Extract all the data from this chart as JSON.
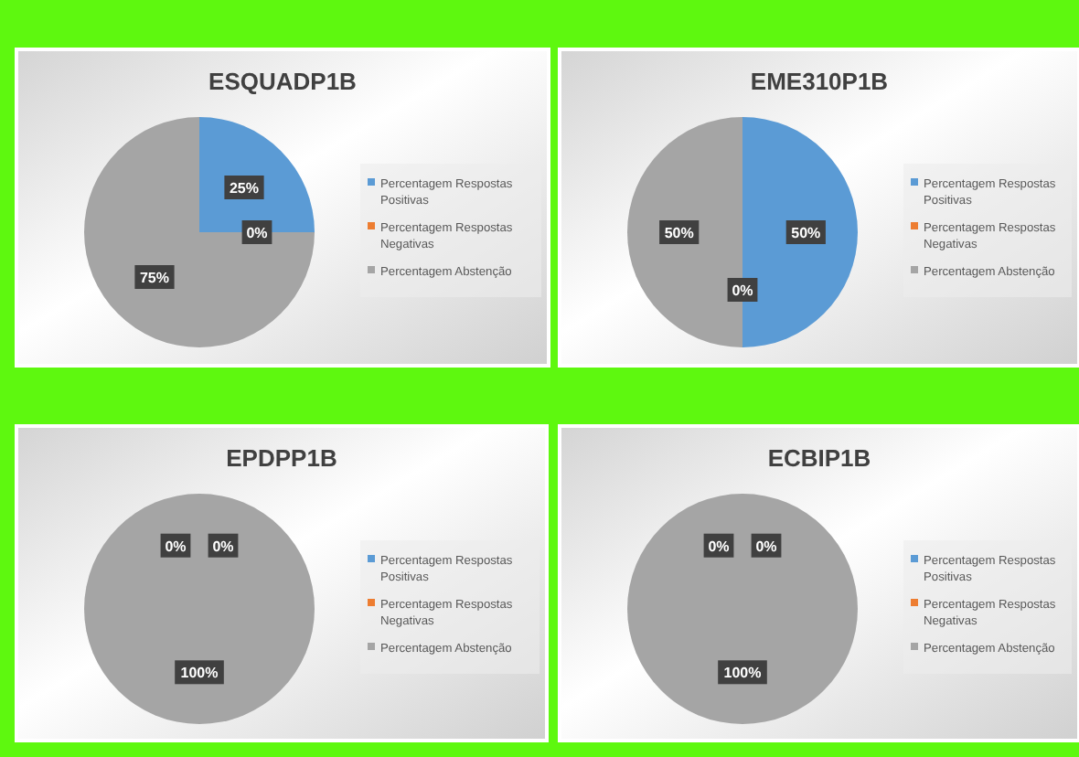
{
  "chart_data": [
    {
      "type": "pie",
      "title": "ESQUADP1B",
      "categories": [
        "Percentagem Respostas Positivas",
        "Percentagem Respostas Negativas",
        "Percentagem Abstenção"
      ],
      "values": [
        25,
        0,
        75
      ],
      "colors": [
        "#5b9bd5",
        "#ed7d31",
        "#a5a5a5"
      ],
      "value_labels": [
        "25%",
        "0%",
        "75%"
      ],
      "legend": "right"
    },
    {
      "type": "pie",
      "title": "EME310P1B",
      "categories": [
        "Percentagem Respostas Positivas",
        "Percentagem Respostas Negativas",
        "Percentagem Abstenção"
      ],
      "values": [
        50,
        0,
        50
      ],
      "colors": [
        "#5b9bd5",
        "#ed7d31",
        "#a5a5a5"
      ],
      "value_labels": [
        "50%",
        "0%",
        "50%"
      ],
      "legend": "right"
    },
    {
      "type": "pie",
      "title": "EPDPP1B",
      "categories": [
        "Percentagem Respostas Positivas",
        "Percentagem Respostas Negativas",
        "Percentagem Abstenção"
      ],
      "values": [
        0,
        0,
        100
      ],
      "colors": [
        "#5b9bd5",
        "#ed7d31",
        "#a5a5a5"
      ],
      "value_labels": [
        "0%",
        "0%",
        "100%"
      ],
      "legend": "right"
    },
    {
      "type": "pie",
      "title": "ECBIP1B",
      "categories": [
        "Percentagem Respostas Positivas",
        "Percentagem Respostas Negativas",
        "Percentagem Abstenção"
      ],
      "values": [
        0,
        0,
        100
      ],
      "colors": [
        "#5b9bd5",
        "#ed7d31",
        "#a5a5a5"
      ],
      "value_labels": [
        "0%",
        "0%",
        "100%"
      ],
      "legend": "right"
    }
  ]
}
